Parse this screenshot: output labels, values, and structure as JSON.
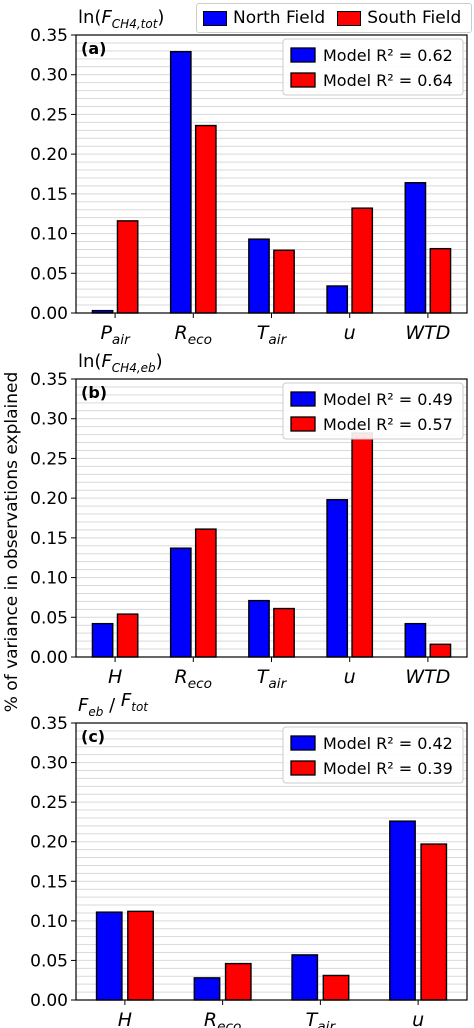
{
  "figure": {
    "ylabel": "% of variance in observations explained"
  },
  "legend": {
    "north": "North Field",
    "south": "South Field"
  },
  "colors": {
    "north": "#0000ff",
    "south": "#ff0000",
    "grid": "#d9d9d9"
  },
  "chart_data": [
    {
      "type": "bar",
      "panel_label": "(a)",
      "title": "ln(F_CH4,tot)",
      "categories": [
        "P_air",
        "R_eco",
        "T_air",
        "u",
        "WTD"
      ],
      "series": [
        {
          "name": "North Field",
          "values": [
            0.003,
            0.329,
            0.093,
            0.034,
            0.164
          ]
        },
        {
          "name": "South Field",
          "values": [
            0.116,
            0.236,
            0.079,
            0.132,
            0.081
          ]
        }
      ],
      "r2_labels": [
        "Model R² = 0.62",
        "Model R² = 0.64"
      ],
      "ylim": [
        0,
        0.35
      ],
      "yticks": [
        "0.00",
        "0.05",
        "0.10",
        "0.15",
        "0.20",
        "0.25",
        "0.30",
        "0.35"
      ],
      "grid": true
    },
    {
      "type": "bar",
      "panel_label": "(b)",
      "title": "ln(F_CH4,eb)",
      "categories": [
        "H",
        "R_eco",
        "T_air",
        "u",
        "WTD"
      ],
      "series": [
        {
          "name": "North Field",
          "values": [
            0.042,
            0.137,
            0.071,
            0.198,
            0.042
          ]
        },
        {
          "name": "South Field",
          "values": [
            0.054,
            0.161,
            0.061,
            0.282,
            0.016
          ]
        }
      ],
      "r2_labels": [
        "Model R² = 0.49",
        "Model R² = 0.57"
      ],
      "ylim": [
        0,
        0.35
      ],
      "yticks": [
        "0.00",
        "0.05",
        "0.10",
        "0.15",
        "0.20",
        "0.25",
        "0.30",
        "0.35"
      ],
      "grid": true
    },
    {
      "type": "bar",
      "panel_label": "(c)",
      "title": "F_eb / F_tot",
      "categories": [
        "H",
        "R_eco",
        "T_air",
        "u"
      ],
      "series": [
        {
          "name": "North Field",
          "values": [
            0.111,
            0.028,
            0.057,
            0.226
          ]
        },
        {
          "name": "South Field",
          "values": [
            0.112,
            0.046,
            0.031,
            0.197
          ]
        }
      ],
      "r2_labels": [
        "Model R² = 0.42",
        "Model R² = 0.39"
      ],
      "ylim": [
        0,
        0.35
      ],
      "yticks": [
        "0.00",
        "0.05",
        "0.10",
        "0.15",
        "0.20",
        "0.25",
        "0.30",
        "0.35"
      ],
      "grid": true
    }
  ]
}
